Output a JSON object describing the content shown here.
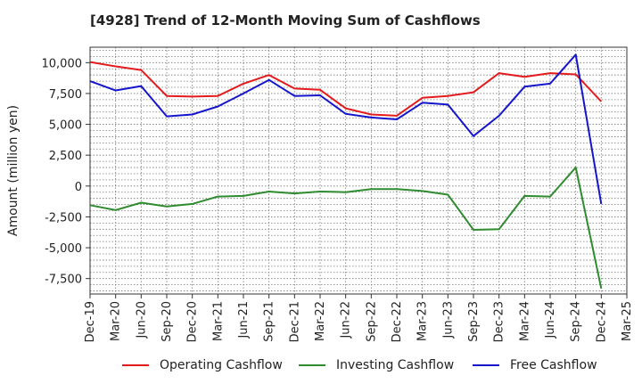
{
  "chart_data": {
    "type": "line",
    "title": "[4928]  Trend of 12-Month Moving Sum of Cashflows",
    "ylabel": "Amount (million yen)",
    "xlabel": "",
    "ylim": [
      -8750,
      11250
    ],
    "yticks": [
      10000,
      7500,
      5000,
      2500,
      0,
      -2500,
      -5000,
      -7500
    ],
    "ytick_labels": [
      "10,000",
      "7,500",
      "5,000",
      "2,500",
      "0",
      "-2,500",
      "-5,000",
      "-7,500"
    ],
    "xtick_labels": [
      "Dec-19",
      "Mar-20",
      "Jun-20",
      "Sep-20",
      "Dec-20",
      "Mar-21",
      "Jun-21",
      "Sep-21",
      "Dec-21",
      "Mar-22",
      "Jun-22",
      "Sep-22",
      "Dec-22",
      "Mar-23",
      "Jun-23",
      "Sep-23",
      "Dec-23",
      "Mar-24",
      "Jun-24",
      "Sep-24",
      "Dec-24",
      "Mar-25"
    ],
    "x": [
      "Dec-19",
      "Mar-20",
      "Jun-20",
      "Sep-20",
      "Dec-20",
      "Mar-21",
      "Jun-21",
      "Sep-21",
      "Dec-21",
      "Mar-22",
      "Jun-22",
      "Sep-22",
      "Dec-22",
      "Mar-23",
      "Jun-23",
      "Sep-23",
      "Dec-23",
      "Mar-24",
      "Jun-24",
      "Sep-24",
      "Dec-24"
    ],
    "grid": true,
    "legend_position": "bottom",
    "series": [
      {
        "name": "Operating Cashflow",
        "color": "#e41a1c",
        "values": [
          10050,
          9700,
          9400,
          7300,
          7250,
          7300,
          8300,
          9000,
          7900,
          7800,
          6300,
          5800,
          5700,
          7150,
          7300,
          7600,
          9150,
          8850,
          9150,
          9050,
          6850
        ]
      },
      {
        "name": "Investing Cashflow",
        "color": "#2e8b2e",
        "values": [
          -1550,
          -1950,
          -1350,
          -1650,
          -1450,
          -850,
          -800,
          -450,
          -600,
          -450,
          -500,
          -250,
          -250,
          -400,
          -700,
          -3550,
          -3500,
          -800,
          -850,
          1500,
          -8300
        ]
      },
      {
        "name": "Free Cashflow",
        "color": "#1515cc",
        "values": [
          8500,
          7750,
          8100,
          5650,
          5800,
          6450,
          7500,
          8600,
          7300,
          7350,
          5850,
          5550,
          5400,
          6750,
          6600,
          4050,
          5700,
          8050,
          8300,
          10650,
          -1450
        ]
      }
    ]
  }
}
